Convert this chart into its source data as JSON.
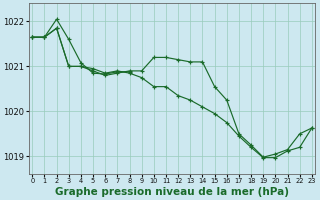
{
  "background_color": "#cde8f0",
  "plot_bg_color": "#cde8f0",
  "grid_color": "#99ccbb",
  "line_color": "#1a6b2a",
  "marker_color": "#1a6b2a",
  "xlabel": "Graphe pression niveau de la mer (hPa)",
  "xlabel_fontsize": 7.5,
  "ytick_labels": [
    "1019",
    "1020",
    "1021",
    "1022"
  ],
  "yticks": [
    1019,
    1020,
    1021,
    1022
  ],
  "xticks": [
    0,
    1,
    2,
    3,
    4,
    5,
    6,
    7,
    8,
    9,
    10,
    11,
    12,
    13,
    14,
    15,
    16,
    17,
    18,
    19,
    20,
    21,
    22,
    23
  ],
  "ylim": [
    1018.6,
    1022.4
  ],
  "xlim": [
    -0.3,
    23.3
  ],
  "series": [
    {
      "x": [
        0,
        1,
        2,
        3,
        4,
        5,
        6,
        7,
        8,
        9,
        10,
        11,
        12,
        13,
        14,
        15,
        16,
        17,
        18,
        19,
        20,
        21,
        22,
        23
      ],
      "y": [
        1021.65,
        1021.65,
        1021.85,
        1021.0,
        1021.0,
        1020.95,
        1020.85,
        1020.9,
        1020.85,
        1020.75,
        1020.55,
        1020.55,
        1020.35,
        1020.25,
        1020.1,
        1019.95,
        1019.75,
        1019.45,
        1019.2,
        1018.97,
        1018.97,
        1019.12,
        1019.2,
        1019.63
      ]
    },
    {
      "x": [
        0,
        1,
        2,
        3,
        4,
        5,
        6,
        7,
        8,
        9,
        10,
        11,
        12,
        13,
        14,
        15,
        16,
        17,
        18,
        19,
        20,
        21,
        22,
        23
      ],
      "y": [
        1021.65,
        1021.65,
        1021.85,
        1021.0,
        1021.0,
        1020.9,
        1020.8,
        1020.85,
        1020.9,
        1020.9,
        1021.2,
        1021.2,
        1021.15,
        1021.1,
        1021.1,
        1020.55,
        1020.25,
        1019.5,
        1019.25,
        1018.98,
        1019.05,
        1019.15,
        1019.5,
        1019.63
      ]
    },
    {
      "x": [
        0,
        1,
        2,
        3,
        4,
        5,
        6,
        7,
        8
      ],
      "y": [
        1021.65,
        1021.65,
        1022.05,
        1021.6,
        1021.08,
        1020.85,
        1020.83,
        1020.88,
        1020.88
      ]
    }
  ]
}
